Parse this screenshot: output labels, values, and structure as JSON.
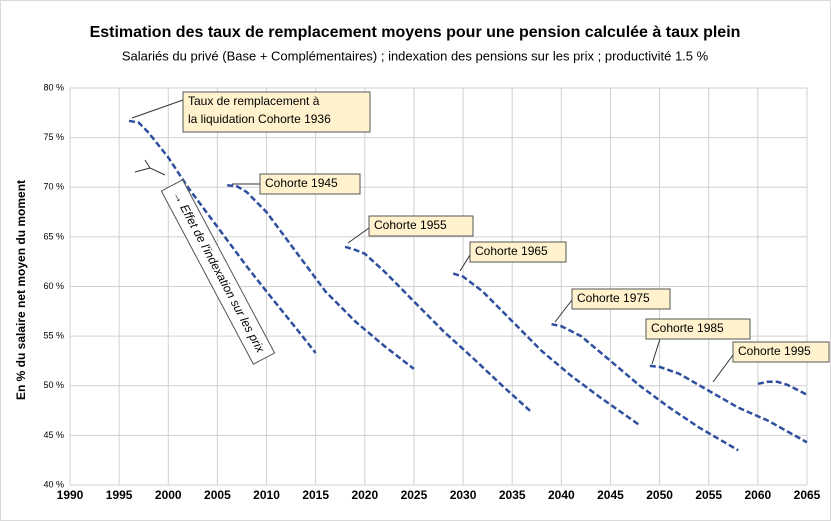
{
  "chart_data": {
    "type": "line",
    "title": "Estimation des taux de remplacement moyens pour une pension calculée à taux plein",
    "subtitle": "Salariés du privé (Base + Complémentaires) ; indexation des pensions sur les prix ; productivité 1.5 %",
    "y_label": "En % du salaire net moyen du moment",
    "xlim": [
      1990,
      2065
    ],
    "xticks": [
      1990,
      1995,
      2000,
      2005,
      2010,
      2015,
      2020,
      2025,
      2030,
      2035,
      2040,
      2045,
      2050,
      2055,
      2060,
      2065
    ],
    "ylim": [
      40,
      80
    ],
    "yticks": [
      {
        "value": 40,
        "label": "40 %"
      },
      {
        "value": 45,
        "label": "45 %"
      },
      {
        "value": 50,
        "label": "50 %"
      },
      {
        "value": 55,
        "label": "55 %"
      },
      {
        "value": 60,
        "label": "60 %"
      },
      {
        "value": 65,
        "label": "65 %"
      },
      {
        "value": 70,
        "label": "70 %"
      },
      {
        "value": 75,
        "label": "75 %"
      },
      {
        "value": 80,
        "label": "80 %"
      }
    ],
    "grid": true,
    "series": [
      {
        "color": "#2e4f9e",
        "x": [
          1996,
          1997,
          1998,
          2000,
          2002,
          2005,
          2008,
          2010,
          2013,
          2015
        ],
        "values": [
          76.7,
          76.5,
          75.5,
          73,
          70,
          66,
          62,
          59.5,
          55.8,
          53.3
        ]
      },
      {
        "color": "#2e4f9e",
        "x": [
          2006,
          2007,
          2008,
          2010,
          2013,
          2016,
          2019,
          2022,
          2025
        ],
        "values": [
          70.2,
          70.1,
          69.5,
          67.5,
          63.5,
          59.5,
          56.5,
          54,
          51.7
        ]
      },
      {
        "color": "#2e4f9e",
        "x": [
          2018,
          2019,
          2020,
          2022,
          2025,
          2028,
          2031,
          2034,
          2037
        ],
        "values": [
          64,
          63.7,
          63.3,
          61.5,
          58.5,
          55.5,
          52.8,
          50,
          47.3
        ]
      },
      {
        "color": "#2e4f9e",
        "x": [
          2029,
          2030,
          2032,
          2035,
          2038,
          2041,
          2044,
          2048
        ],
        "values": [
          61.3,
          61,
          59.5,
          56.5,
          53.5,
          51,
          48.8,
          46
        ]
      },
      {
        "color": "#2e4f9e",
        "x": [
          2039,
          2040,
          2042,
          2045,
          2048,
          2051,
          2054,
          2058
        ],
        "values": [
          56.2,
          56,
          55,
          52.5,
          50,
          47.8,
          45.8,
          43.5
        ]
      },
      {
        "color": "#2e4f9e",
        "x": [
          2049,
          2050,
          2052,
          2055,
          2058,
          2061,
          2065
        ],
        "values": [
          52,
          51.9,
          51.2,
          49.5,
          47.8,
          46.5,
          44.3
        ]
      },
      {
        "color": "#2e4f9e",
        "x": [
          2060,
          2061,
          2062,
          2063,
          2064,
          2065
        ],
        "values": [
          50.2,
          50.4,
          50.4,
          50.1,
          49.6,
          49.1
        ]
      }
    ],
    "annotations": [
      [
        "Taux de remplacement à",
        "la liquidation Cohorte 1936"
      ],
      [
        "Cohorte 1945"
      ],
      [
        "Cohorte 1955"
      ],
      [
        "Cohorte 1965"
      ],
      [
        "Cohorte 1975"
      ],
      [
        "Cohorte 1985"
      ],
      [
        "Cohorte 1995"
      ],
      [
        "→ Effet de l'indexation sur les prix"
      ]
    ]
  }
}
